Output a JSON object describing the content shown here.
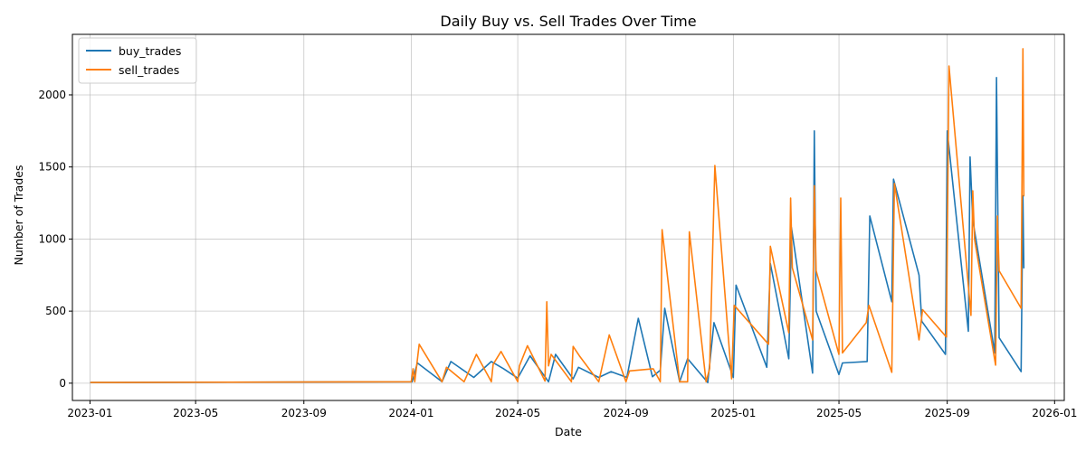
{
  "chart_data": {
    "type": "line",
    "title": "Daily Buy vs. Sell Trades Over Time",
    "xlabel": "Date",
    "ylabel": "Number of Trades",
    "x_ticks": [
      "2023-01",
      "2023-05",
      "2023-09",
      "2024-01",
      "2024-05",
      "2024-09",
      "2025-01",
      "2025-05",
      "2025-09",
      "2026-01"
    ],
    "y_ticks": [
      0,
      500,
      1000,
      1500,
      2000
    ],
    "xlim": [
      "2022-12-12",
      "2026-01-12"
    ],
    "ylim": [
      -120,
      2420
    ],
    "grid": true,
    "legend_position": "upper-left",
    "series": [
      {
        "name": "buy_trades",
        "color": "#1f77b4",
        "x": [
          "2023-01-02",
          "2024-01-02",
          "2024-01-08",
          "2024-02-05",
          "2024-02-15",
          "2024-03-12",
          "2024-04-01",
          "2024-04-15",
          "2024-05-01",
          "2024-05-15",
          "2024-06-05",
          "2024-06-13",
          "2024-07-03",
          "2024-07-09",
          "2024-08-01",
          "2024-08-15",
          "2024-09-02",
          "2024-09-15",
          "2024-10-01",
          "2024-10-10",
          "2024-10-15",
          "2024-11-01",
          "2024-11-10",
          "2024-12-03",
          "2024-12-10",
          "2025-01-01",
          "2025-01-04",
          "2025-02-08",
          "2025-02-12",
          "2025-03-05",
          "2025-03-08",
          "2025-04-01",
          "2025-04-03",
          "2025-04-05",
          "2025-05-01",
          "2025-05-05",
          "2025-06-02",
          "2025-06-05",
          "2025-06-30",
          "2025-07-02",
          "2025-07-31",
          "2025-08-03",
          "2025-08-30",
          "2025-09-01",
          "2025-09-25",
          "2025-09-27",
          "2025-09-30",
          "2025-10-25",
          "2025-10-27",
          "2025-10-30",
          "2025-11-24",
          "2025-11-26",
          "2025-11-27"
        ],
        "values": [
          5,
          10,
          140,
          10,
          150,
          40,
          150,
          100,
          35,
          190,
          10,
          200,
          30,
          110,
          40,
          80,
          40,
          450,
          45,
          90,
          520,
          10,
          170,
          5,
          420,
          40,
          680,
          110,
          830,
          170,
          1080,
          70,
          1750,
          500,
          60,
          140,
          150,
          1160,
          565,
          1415,
          750,
          430,
          200,
          1750,
          360,
          1570,
          1130,
          210,
          2120,
          315,
          80,
          1300,
          800
        ]
      },
      {
        "name": "sell_trades",
        "color": "#ff7f0e",
        "x": [
          "2023-01-02",
          "2024-01-01",
          "2024-01-03",
          "2024-01-05",
          "2024-01-10",
          "2024-02-05",
          "2024-02-10",
          "2024-03-01",
          "2024-03-15",
          "2024-04-01",
          "2024-04-03",
          "2024-04-12",
          "2024-05-01",
          "2024-05-03",
          "2024-05-12",
          "2024-06-01",
          "2024-06-03",
          "2024-06-05",
          "2024-06-08",
          "2024-07-01",
          "2024-07-03",
          "2024-07-10",
          "2024-08-01",
          "2024-08-13",
          "2024-09-01",
          "2024-09-05",
          "2024-10-02",
          "2024-10-10",
          "2024-10-12",
          "2024-11-01",
          "2024-11-10",
          "2024-11-12",
          "2024-12-01",
          "2024-12-05",
          "2024-12-11",
          "2024-12-30",
          "2025-01-02",
          "2025-02-10",
          "2025-02-12",
          "2025-03-05",
          "2025-03-07",
          "2025-03-09",
          "2025-04-01",
          "2025-04-03",
          "2025-04-05",
          "2025-05-01",
          "2025-05-03",
          "2025-05-05",
          "2025-06-01",
          "2025-06-04",
          "2025-06-30",
          "2025-07-03",
          "2025-07-31",
          "2025-08-04",
          "2025-08-31",
          "2025-09-03",
          "2025-09-28",
          "2025-09-30",
          "2025-10-02",
          "2025-10-26",
          "2025-10-28",
          "2025-10-30",
          "2025-11-24",
          "2025-11-26",
          "2025-11-27"
        ],
        "values": [
          5,
          10,
          100,
          10,
          270,
          10,
          110,
          10,
          200,
          10,
          130,
          220,
          10,
          120,
          260,
          15,
          565,
          120,
          200,
          10,
          255,
          190,
          10,
          335,
          10,
          85,
          100,
          10,
          1065,
          10,
          10,
          1050,
          10,
          100,
          1510,
          30,
          540,
          270,
          950,
          350,
          1285,
          800,
          300,
          1370,
          780,
          200,
          1285,
          210,
          420,
          540,
          75,
          1385,
          300,
          510,
          320,
          2200,
          470,
          1335,
          1000,
          125,
          1160,
          780,
          520,
          2320,
          1300
        ]
      }
    ]
  }
}
